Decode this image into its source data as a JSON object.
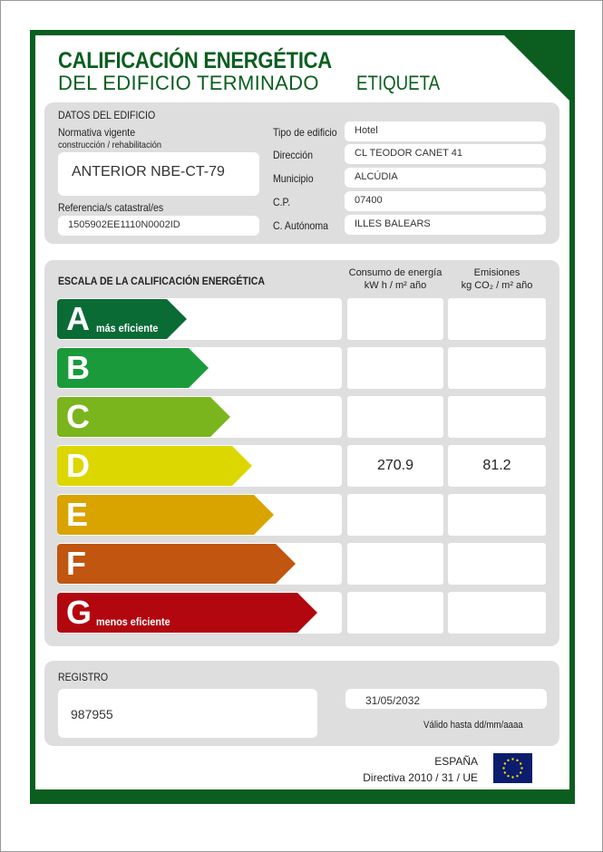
{
  "header": {
    "title_line1": "CALIFICACIÓN ENERGÉTICA",
    "title_line2": "DEL EDIFICIO TERMINADO",
    "label": "ETIQUETA"
  },
  "datos": {
    "title": "DATOS DEL EDIFICIO",
    "normativa_label1": "Normativa vigente",
    "normativa_label2": "construcción / rehabilitación",
    "normativa": "ANTERIOR NBE-CT-79",
    "referencia_label": "Referencia/s catastral/es",
    "referencia": "1505902EE1110N0002ID",
    "fields": [
      {
        "label": "Tipo de edificio",
        "value": "Hotel"
      },
      {
        "label": "Dirección",
        "value": "CL TEODOR CANET 41"
      },
      {
        "label": "Municipio",
        "value": "ALCÚDIA"
      },
      {
        "label": "C.P.",
        "value": "07400"
      },
      {
        "label": "C. Autónoma",
        "value": "ILLES BALEARS"
      }
    ]
  },
  "escala": {
    "title": "ESCALA DE LA CALIFICACIÓN ENERGÉTICA",
    "col1_line1": "Consumo de energía",
    "col1_line2": "kW h  / m² año",
    "col2_line1": "Emisiones",
    "col2_line2": "kg CO₂  / m² año",
    "ratings": [
      {
        "letter": "A",
        "sub": "más eficiente",
        "color": "#0a6b35",
        "consumo": "",
        "emisiones": ""
      },
      {
        "letter": "B",
        "sub": "",
        "color": "#1a9a3a",
        "consumo": "",
        "emisiones": ""
      },
      {
        "letter": "C",
        "sub": "",
        "color": "#7ab51d",
        "consumo": "",
        "emisiones": ""
      },
      {
        "letter": "D",
        "sub": "",
        "color": "#dcd700",
        "consumo": "270.9",
        "emisiones": "81.2"
      },
      {
        "letter": "E",
        "sub": "",
        "color": "#d9a300",
        "consumo": "",
        "emisiones": ""
      },
      {
        "letter": "F",
        "sub": "",
        "color": "#c0560f",
        "consumo": "",
        "emisiones": ""
      },
      {
        "letter": "G",
        "sub": "menos eficiente",
        "color": "#b2070f",
        "consumo": "",
        "emisiones": ""
      }
    ]
  },
  "registro": {
    "title": "REGISTRO",
    "number": "987955",
    "date": "31/05/2032",
    "date_label": "Válido hasta dd/mm/aaaa"
  },
  "footer": {
    "country": "ESPAÑA",
    "directive": "Directiva 2010 / 31 / UE",
    "flag_icon": "eu-flag-icon"
  }
}
